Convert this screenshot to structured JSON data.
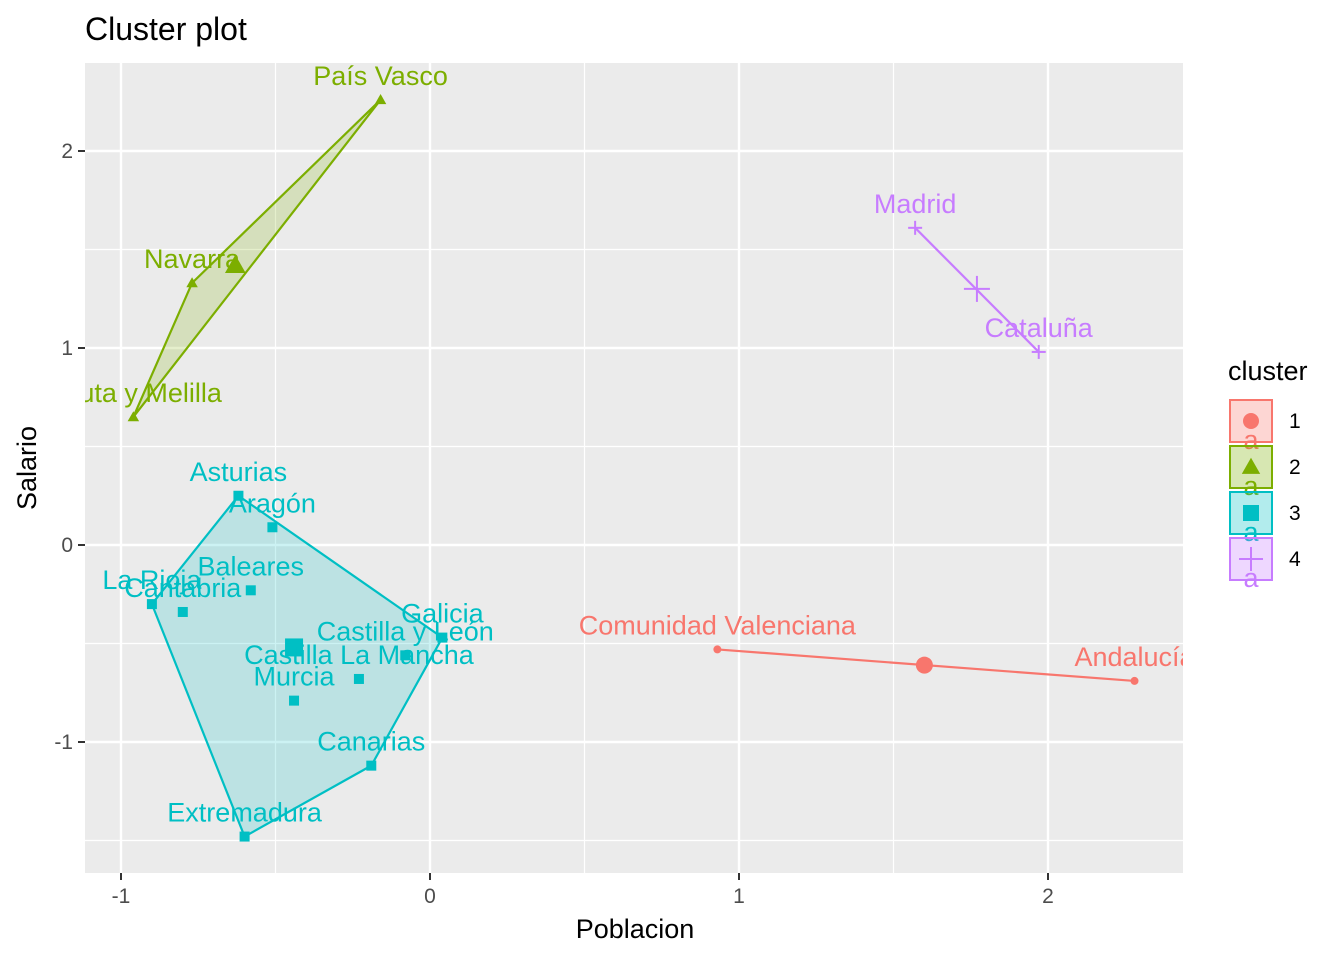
{
  "chart_data": {
    "type": "scatter",
    "title": "Cluster plot",
    "xlabel": "Poblacion",
    "ylabel": "Salario",
    "xlim": [
      -1.12,
      2.45
    ],
    "ylim": [
      -1.66,
      2.45
    ],
    "x_ticks": [
      -1,
      0,
      1,
      2
    ],
    "x_tick_labels": [
      "-1",
      "0",
      "1",
      "2"
    ],
    "y_ticks": [
      -1,
      0,
      1,
      2
    ],
    "y_tick_labels": [
      "-1",
      "0",
      "1",
      "2"
    ],
    "grid": true,
    "legend_title": "cluster",
    "legend_position": "right",
    "clusters": [
      {
        "id": "1",
        "color": "#F8766D",
        "marker": "circle",
        "legend_glyph": "a",
        "center": [
          1.6,
          -0.61
        ],
        "hull": false,
        "points": [
          {
            "name": "Comunidad Valenciana",
            "x": 0.93,
            "y": -0.53
          },
          {
            "name": "Andalucía",
            "x": 2.28,
            "y": -0.69
          }
        ]
      },
      {
        "id": "2",
        "color": "#7CAE00",
        "marker": "triangle",
        "legend_glyph": "a",
        "center": [
          -0.63,
          1.42
        ],
        "hull": true,
        "points": [
          {
            "name": "País Vasco",
            "x": -0.16,
            "y": 2.26
          },
          {
            "name": "Navarra",
            "x": -0.77,
            "y": 1.33
          },
          {
            "name": "Ceuta y Melilla",
            "x": -0.96,
            "y": 0.65
          }
        ]
      },
      {
        "id": "3",
        "color": "#00BFC4",
        "marker": "square",
        "legend_glyph": "a",
        "center": [
          -0.44,
          -0.52
        ],
        "hull": true,
        "points": [
          {
            "name": "Asturias",
            "x": -0.62,
            "y": 0.25
          },
          {
            "name": "Aragón",
            "x": -0.51,
            "y": 0.09
          },
          {
            "name": "Baleares",
            "x": -0.58,
            "y": -0.23
          },
          {
            "name": "La Rioja",
            "x": -0.9,
            "y": -0.3
          },
          {
            "name": "Cantabria",
            "x": -0.8,
            "y": -0.34
          },
          {
            "name": "Galicia",
            "x": 0.04,
            "y": -0.47
          },
          {
            "name": "Castilla y León",
            "x": -0.08,
            "y": -0.56
          },
          {
            "name": "Castilla La Mancha",
            "x": -0.23,
            "y": -0.68
          },
          {
            "name": "Murcia",
            "x": -0.44,
            "y": -0.79
          },
          {
            "name": "Canarias",
            "x": -0.19,
            "y": -1.12
          },
          {
            "name": "Extremadura",
            "x": -0.6,
            "y": -1.48
          }
        ]
      },
      {
        "id": "4",
        "color": "#C77CFF",
        "marker": "plus",
        "legend_glyph": "a",
        "center": [
          1.77,
          1.3
        ],
        "hull": false,
        "points": [
          {
            "name": "Madrid",
            "x": 1.57,
            "y": 1.61
          },
          {
            "name": "Cataluña",
            "x": 1.97,
            "y": 0.98
          }
        ]
      }
    ]
  }
}
